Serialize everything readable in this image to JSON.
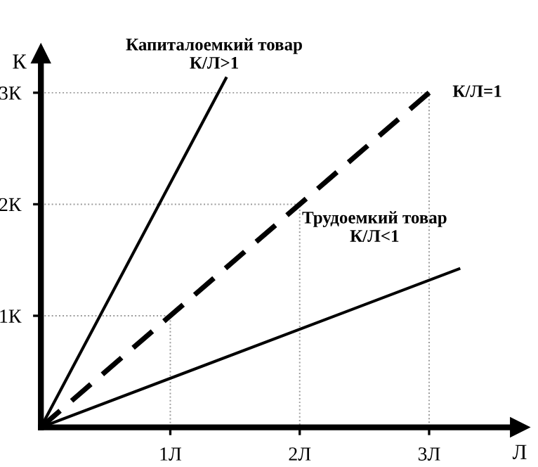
{
  "chart_data": {
    "type": "line",
    "xlabel": "Л",
    "ylabel": "К",
    "xlim": [
      0,
      3.7
    ],
    "ylim": [
      0,
      3.35
    ],
    "xticks": [
      {
        "value": 1,
        "label": "1Л"
      },
      {
        "value": 2,
        "label": "2Л"
      },
      {
        "value": 3,
        "label": "3Л"
      }
    ],
    "yticks": [
      {
        "value": 1,
        "label": "1К"
      },
      {
        "value": 2,
        "label": "2К"
      },
      {
        "value": 3,
        "label": "3К"
      }
    ],
    "grid": false,
    "legend": false,
    "marker": "none",
    "series": [
      {
        "color": "#000000",
        "line_style": "solid",
        "x": [
          0,
          1.43
        ],
        "values": [
          0,
          3.13
        ]
      },
      {
        "color": "#000000",
        "line_style": "dashed",
        "x": [
          0,
          3.0
        ],
        "values": [
          0,
          3.0
        ]
      },
      {
        "color": "#000000",
        "line_style": "solid",
        "x": [
          0,
          3.23
        ],
        "values": [
          0,
          1.42
        ]
      },
      {
        "color": "#999999",
        "line_style": "dotted",
        "x": [
          0,
          1,
          1
        ],
        "values": [
          1,
          1,
          0
        ]
      },
      {
        "color": "#999999",
        "line_style": "dotted",
        "x": [
          0,
          2,
          2
        ],
        "values": [
          2,
          2,
          0
        ]
      },
      {
        "color": "#999999",
        "line_style": "dotted",
        "x": [
          0,
          3,
          3
        ],
        "values": [
          3,
          3,
          0
        ]
      }
    ],
    "annotations": [
      {
        "text": "Капиталоемкий товар\nК/Л>1",
        "x": 1.43,
        "y": 3.13
      },
      {
        "text": "К/Л=1",
        "x": 3.0,
        "y": 3.0
      },
      {
        "text": "Трудоемкий товар\nК/Л<1",
        "x": 3.23,
        "y": 1.42
      }
    ]
  }
}
